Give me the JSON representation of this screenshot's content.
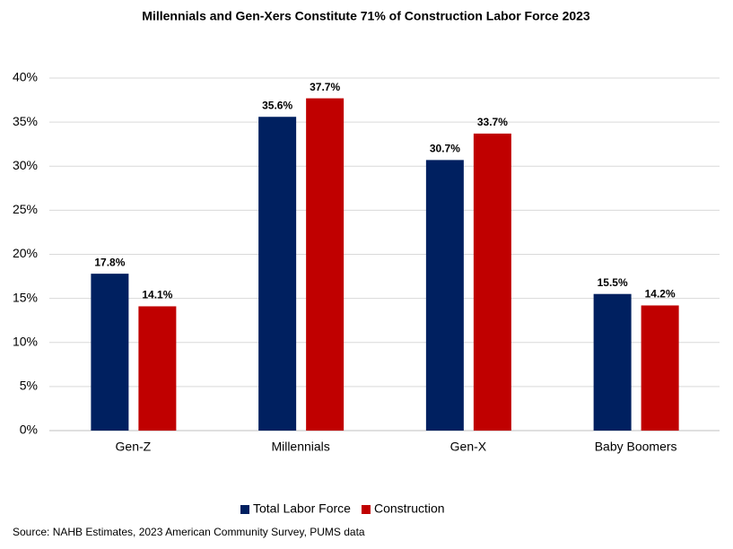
{
  "chart_data": {
    "type": "bar",
    "title": "Millennials and Gen-Xers Constitute 71% of Construction Labor Force 2023",
    "categories": [
      "Gen-Z",
      "Millennials",
      "Gen-X",
      "Baby Boomers"
    ],
    "series": [
      {
        "name": "Total Labor Force",
        "color": "#002060",
        "values": [
          17.8,
          35.6,
          30.7,
          15.5
        ],
        "value_labels": [
          "17.8%",
          "35.6%",
          "30.7%",
          "15.5%"
        ]
      },
      {
        "name": "Construction",
        "color": "#c00000",
        "values": [
          14.1,
          37.7,
          33.7,
          14.2
        ],
        "value_labels": [
          "14.1%",
          "37.7%",
          "33.7%",
          "14.2%"
        ]
      }
    ],
    "ylim": [
      0,
      40
    ],
    "yticks": [
      {
        "value": 0,
        "label": "0%"
      },
      {
        "value": 5,
        "label": "5%"
      },
      {
        "value": 10,
        "label": "10%"
      },
      {
        "value": 15,
        "label": "15%"
      },
      {
        "value": 20,
        "label": "20%"
      },
      {
        "value": 25,
        "label": "25%"
      },
      {
        "value": 30,
        "label": "30%"
      },
      {
        "value": 35,
        "label": "35%"
      },
      {
        "value": 40,
        "label": "40%"
      }
    ],
    "grid": true,
    "legend": "bottom",
    "source": "Source: NAHB Estimates, 2023 American Community Survey, PUMS data"
  }
}
